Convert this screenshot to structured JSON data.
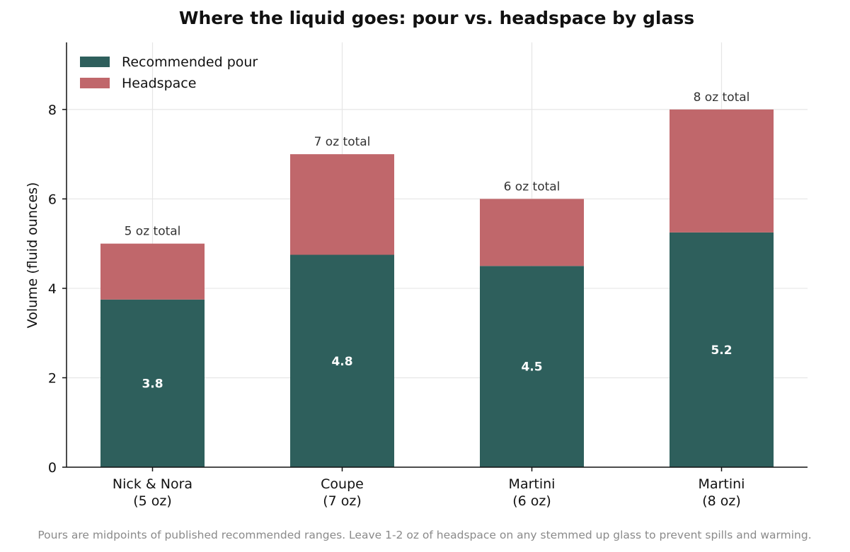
{
  "chart_data": {
    "type": "bar",
    "stacked": true,
    "title": "Where the liquid goes: pour vs. headspace by glass",
    "xlabel": "",
    "ylabel": "Volume (fluid ounces)",
    "categories": [
      [
        "Nick & Nora",
        "(5 oz)"
      ],
      [
        "Coupe",
        "(7 oz)"
      ],
      [
        "Martini",
        "(6 oz)"
      ],
      [
        "Martini",
        "(8 oz)"
      ]
    ],
    "series": [
      {
        "name": "Recommended pour",
        "color": "#2e5f5c",
        "values": [
          3.75,
          4.75,
          4.5,
          5.25
        ]
      },
      {
        "name": "Headspace",
        "color": "#c0676b",
        "values": [
          1.25,
          2.25,
          1.5,
          2.75
        ]
      }
    ],
    "pour_labels": [
      "3.8",
      "4.8",
      "4.5",
      "5.2"
    ],
    "total_labels": [
      "5 oz total",
      "7 oz total",
      "6 oz total",
      "8 oz total"
    ],
    "yticks": [
      0,
      2,
      4,
      6,
      8
    ],
    "ylim": [
      0,
      9.5
    ],
    "grid": true,
    "legend": "top-left",
    "footnote": "Pours are midpoints of published recommended ranges. Leave 1-2 oz of headspace on any stemmed up glass to prevent spills and warming."
  }
}
